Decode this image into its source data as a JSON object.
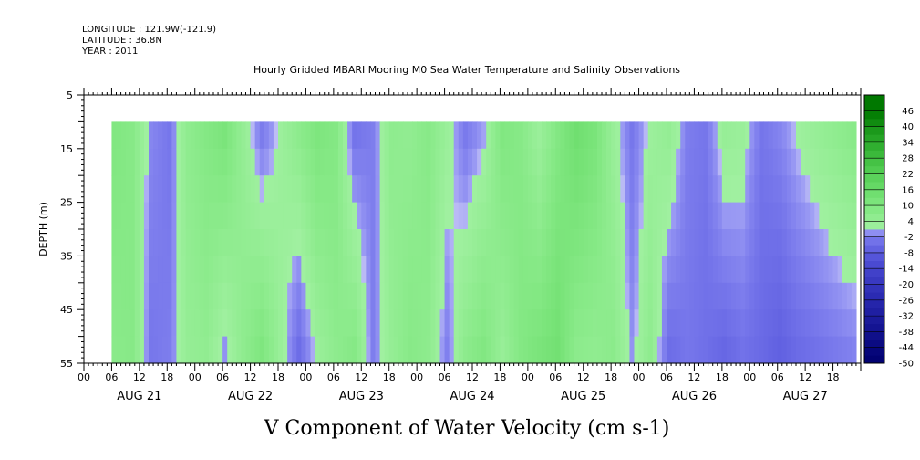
{
  "header": {
    "longitude": "LONGITUDE : 121.9W(-121.9)",
    "latitude": "LATITUDE : 36.8N",
    "year": "YEAR : 2011"
  },
  "chart_data": {
    "type": "heatmap",
    "title": "Hourly Gridded MBARI Mooring M0 Sea Water Temperature and Salinity Observations",
    "xlabel": "V Component of Water Velocity (cm s-1)",
    "ylabel": "DEPTH (m)",
    "ylim": [
      55,
      5
    ],
    "y_ticks": [
      5,
      15,
      25,
      35,
      45,
      55
    ],
    "x_hour_ticks": [
      "00",
      "06",
      "12",
      "18",
      "00",
      "06",
      "12",
      "18",
      "00",
      "06",
      "12",
      "18",
      "00",
      "06",
      "12",
      "18",
      "00",
      "06",
      "12",
      "18",
      "00",
      "06",
      "12",
      "18",
      "00",
      "06",
      "12",
      "18"
    ],
    "x_day_labels": [
      "AUG 21",
      "AUG 22",
      "AUG 23",
      "AUG 24",
      "AUG 25",
      "AUG 26",
      "AUG 27"
    ],
    "x_range_hours": [
      0,
      168
    ],
    "data_extent": {
      "start_hour": 6,
      "end_hour": 167,
      "depth_top": 10,
      "depth_bottom": 55
    },
    "colorbar_labels": [
      "46",
      "40",
      "34",
      "28",
      "22",
      "16",
      "10",
      "4",
      "-2",
      "-8",
      "-14",
      "-20",
      "-26",
      "-32",
      "-38",
      "-44",
      "-50"
    ],
    "colorbar_range": [
      -50,
      52
    ],
    "colorbar_step": 3,
    "profile_hours": [
      6,
      10,
      14,
      18,
      22,
      26,
      30,
      34,
      38,
      42,
      46,
      50,
      54,
      58,
      62,
      66,
      70,
      74,
      78,
      82,
      86,
      90,
      94,
      98,
      102,
      106,
      110,
      114,
      118,
      122,
      126,
      130,
      134,
      138,
      142,
      146,
      150,
      154,
      158,
      162,
      166
    ],
    "profile_values_top": [
      10,
      8,
      -1,
      -3,
      6,
      9,
      12,
      4,
      -3,
      2,
      7,
      11,
      9,
      -4,
      -2,
      6,
      5,
      8,
      3,
      -3,
      0,
      10,
      8,
      2,
      9,
      15,
      12,
      3,
      -3,
      2,
      5,
      -2,
      -3,
      4,
      3,
      -3,
      -1,
      2,
      4,
      6,
      8
    ],
    "profile_values_bottom": [
      7,
      8,
      -3,
      -2,
      4,
      5,
      -1,
      6,
      11,
      3,
      -5,
      2,
      6,
      9,
      -2,
      4,
      8,
      6,
      -2,
      7,
      10,
      3,
      9,
      12,
      14,
      6,
      5,
      7,
      0,
      6,
      -5,
      -3,
      -4,
      -6,
      -4,
      -5,
      -7,
      -5,
      -4,
      -3,
      -2
    ]
  }
}
